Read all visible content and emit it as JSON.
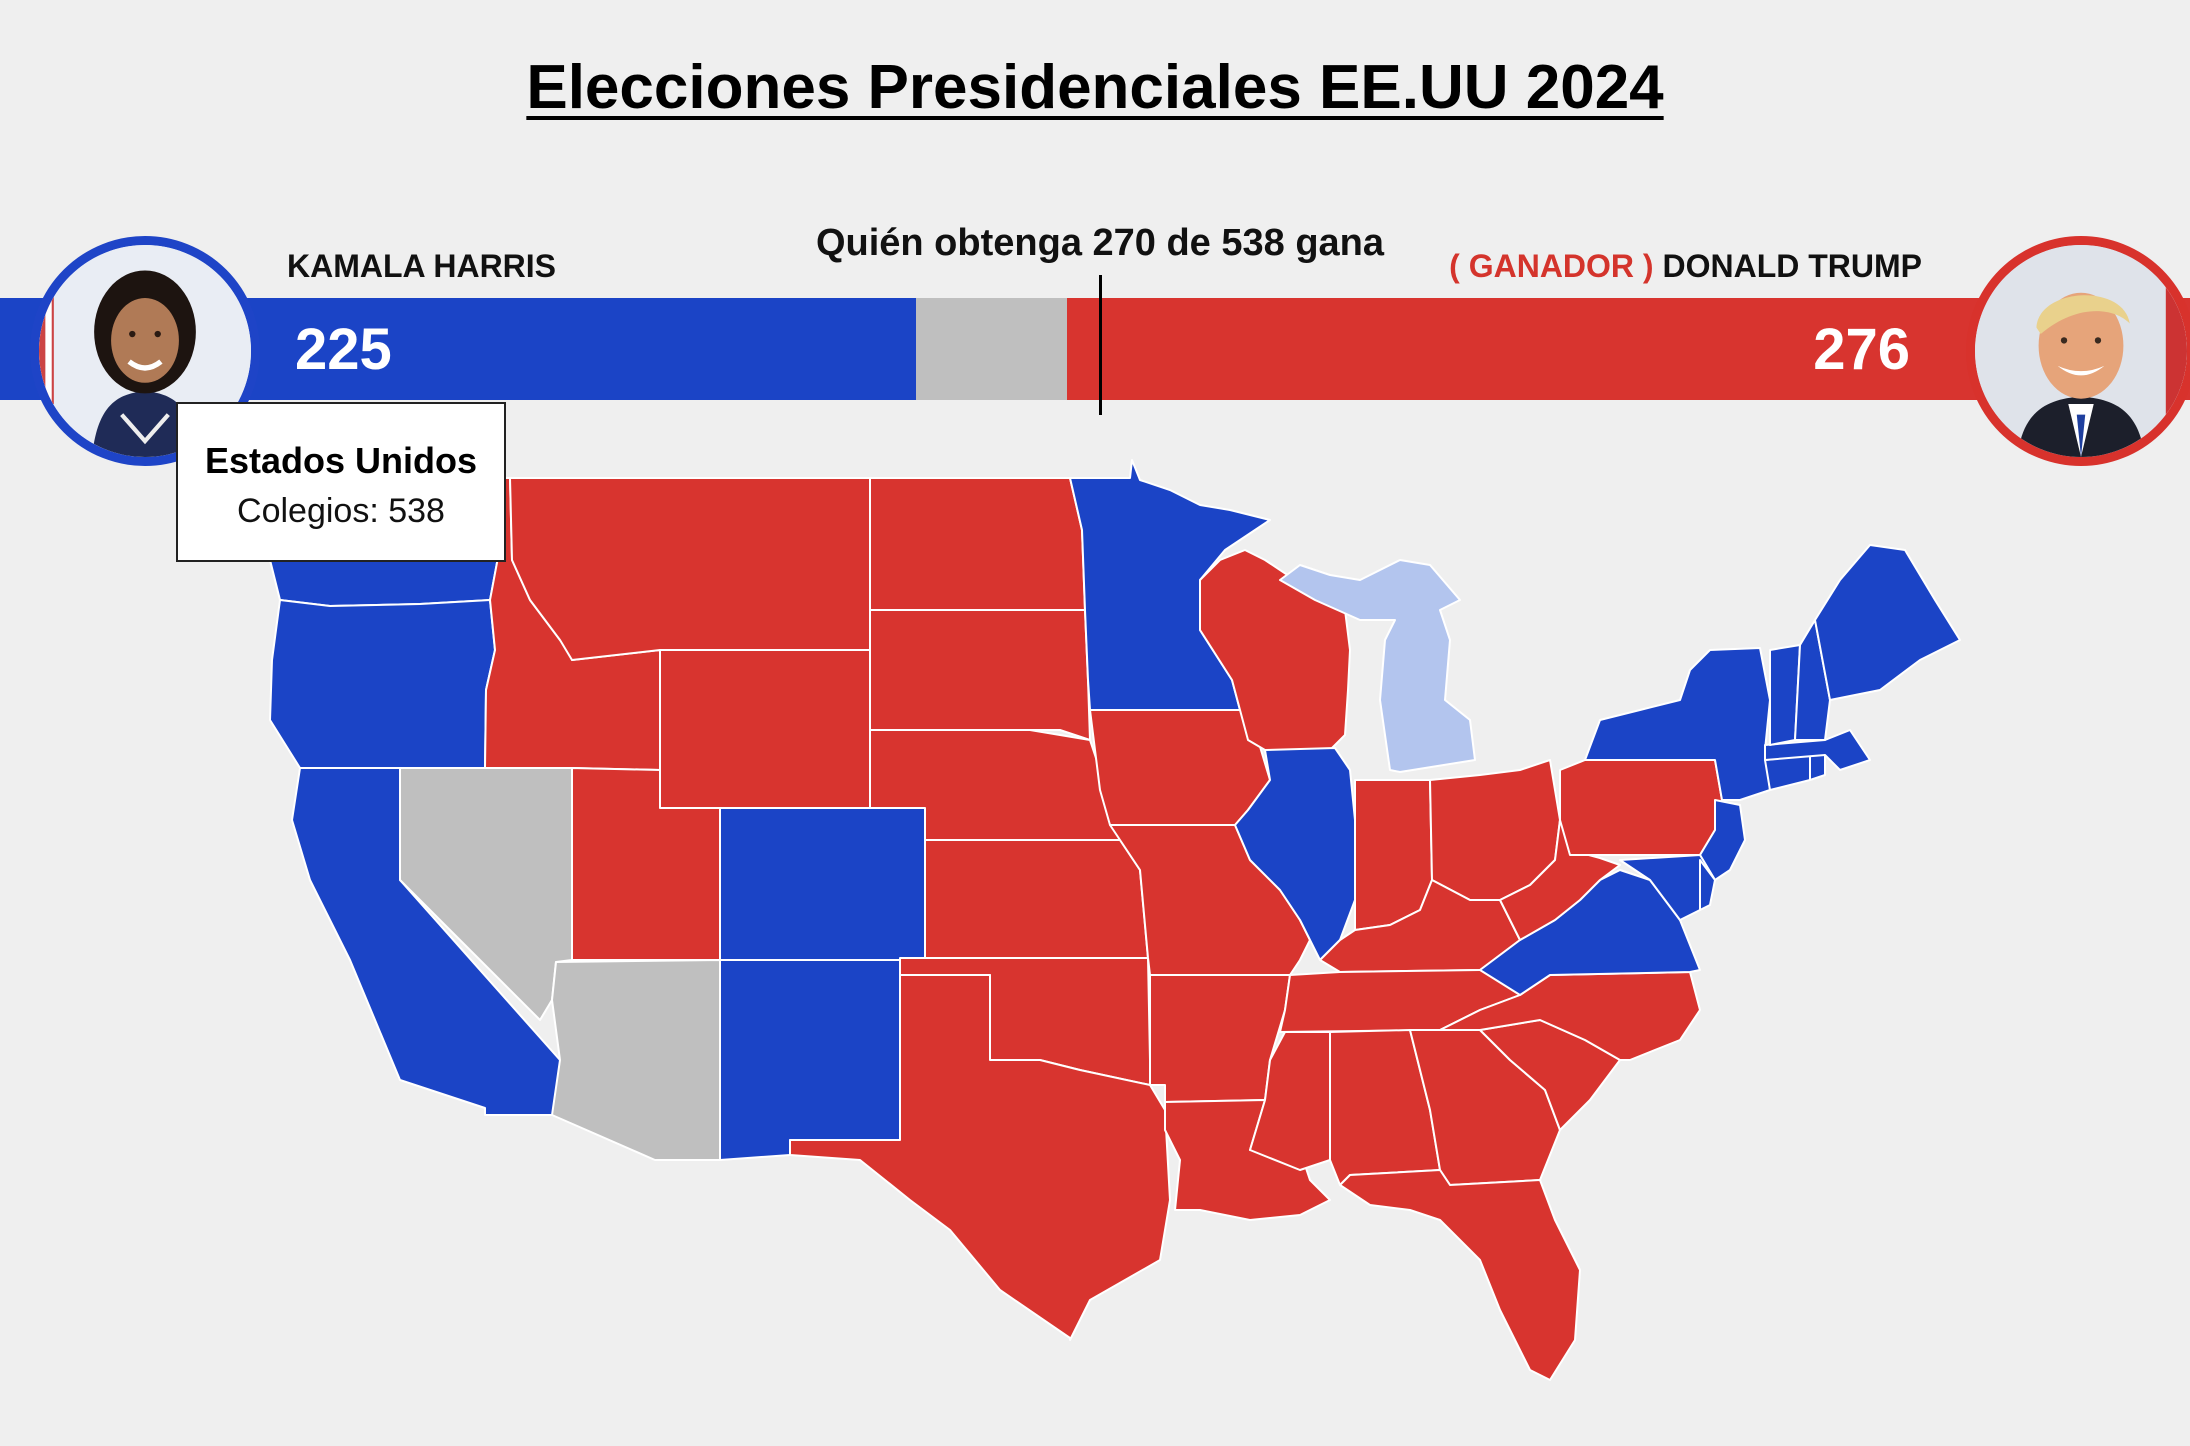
{
  "title": "Elecciones Presidenciales EE.UU 2024",
  "threshold_label": "Quién obtenga 270 de 538 gana",
  "colors": {
    "dem": "#1b44c6",
    "rep": "#d8342f",
    "undecided": "#bfbfbf",
    "dem_light": "#b3c5ee",
    "background": "#efefef"
  },
  "candidates": {
    "left": {
      "name": "KAMALA HARRIS",
      "votes": "225",
      "avatar_icon": "kamala-harris-photo"
    },
    "right": {
      "winner_tag": "( GANADOR )",
      "name": "DONALD TRUMP",
      "votes": "276",
      "avatar_icon": "donald-trump-photo"
    }
  },
  "bar": {
    "total": 538,
    "dem": 225,
    "undecided": 37,
    "rep": 276,
    "threshold": 270
  },
  "tooltip": {
    "region": "Estados Unidos",
    "detail": "Colegios: 538"
  },
  "map_states": [
    {
      "id": "WA",
      "party": "dem"
    },
    {
      "id": "OR",
      "party": "dem"
    },
    {
      "id": "CA",
      "party": "dem"
    },
    {
      "id": "NV",
      "party": "undecided"
    },
    {
      "id": "AZ",
      "party": "undecided"
    },
    {
      "id": "ID",
      "party": "rep"
    },
    {
      "id": "MT",
      "party": "rep"
    },
    {
      "id": "WY",
      "party": "rep"
    },
    {
      "id": "UT",
      "party": "rep"
    },
    {
      "id": "CO",
      "party": "dem"
    },
    {
      "id": "NM",
      "party": "dem"
    },
    {
      "id": "ND",
      "party": "rep"
    },
    {
      "id": "SD",
      "party": "rep"
    },
    {
      "id": "NE",
      "party": "rep"
    },
    {
      "id": "KS",
      "party": "rep"
    },
    {
      "id": "OK",
      "party": "rep"
    },
    {
      "id": "TX",
      "party": "rep"
    },
    {
      "id": "MN",
      "party": "dem"
    },
    {
      "id": "IA",
      "party": "rep"
    },
    {
      "id": "MO",
      "party": "rep"
    },
    {
      "id": "AR",
      "party": "rep"
    },
    {
      "id": "LA",
      "party": "rep"
    },
    {
      "id": "WI",
      "party": "rep"
    },
    {
      "id": "IL",
      "party": "dem"
    },
    {
      "id": "MI",
      "party": "dem_light"
    },
    {
      "id": "IN",
      "party": "rep"
    },
    {
      "id": "OH",
      "party": "rep"
    },
    {
      "id": "KY",
      "party": "rep"
    },
    {
      "id": "TN",
      "party": "rep"
    },
    {
      "id": "MS",
      "party": "rep"
    },
    {
      "id": "AL",
      "party": "rep"
    },
    {
      "id": "GA",
      "party": "rep"
    },
    {
      "id": "FL",
      "party": "rep"
    },
    {
      "id": "SC",
      "party": "rep"
    },
    {
      "id": "NC",
      "party": "rep"
    },
    {
      "id": "VA",
      "party": "dem"
    },
    {
      "id": "WV",
      "party": "rep"
    },
    {
      "id": "PA",
      "party": "rep"
    },
    {
      "id": "NY",
      "party": "dem"
    },
    {
      "id": "NJ",
      "party": "dem"
    },
    {
      "id": "MD",
      "party": "dem"
    },
    {
      "id": "DE",
      "party": "dem"
    },
    {
      "id": "CT",
      "party": "dem"
    },
    {
      "id": "RI",
      "party": "dem"
    },
    {
      "id": "MA",
      "party": "dem"
    },
    {
      "id": "VT",
      "party": "dem"
    },
    {
      "id": "NH",
      "party": "dem"
    },
    {
      "id": "ME",
      "party": "dem"
    }
  ]
}
